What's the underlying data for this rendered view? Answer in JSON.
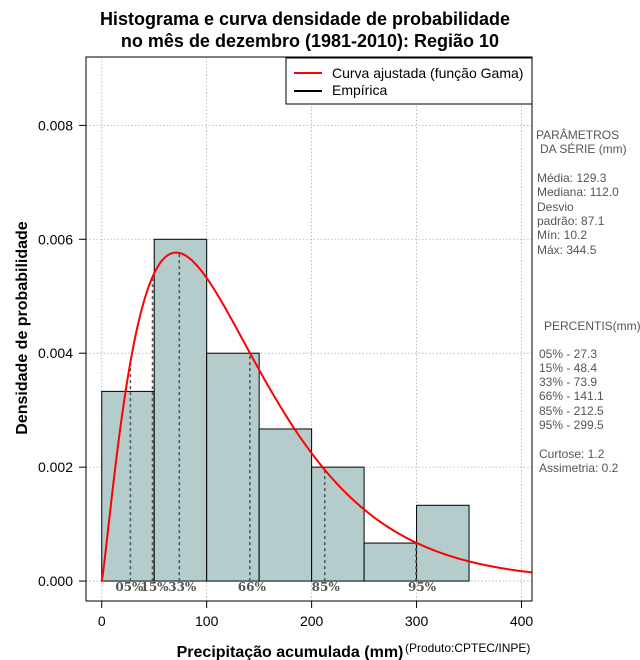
{
  "chart_data": {
    "type": "bar",
    "title_line1": "Histograma e curva densidade de probabilidade",
    "title_line2": "no mês de dezembro (1981-2010): Região 10",
    "xlabel": "Precipitação acumulada (mm)",
    "ylabel": "Densidade de probabilidade",
    "xlim": [
      -15,
      410
    ],
    "ylim": [
      -0.00035,
      0.0092
    ],
    "x_ticks": [
      0,
      100,
      200,
      300,
      400
    ],
    "y_ticks": [
      0.0,
      0.002,
      0.004,
      0.006,
      0.008
    ],
    "x_tick_labels": [
      "0",
      "100",
      "200",
      "300",
      "400"
    ],
    "y_tick_labels": [
      "0.000",
      "0.002",
      "0.004",
      "0.006",
      "0.008"
    ],
    "bins": [
      {
        "start": 0,
        "end": 50,
        "density": 0.00333
      },
      {
        "start": 50,
        "end": 100,
        "density": 0.006
      },
      {
        "start": 100,
        "end": 150,
        "density": 0.004
      },
      {
        "start": 150,
        "end": 200,
        "density": 0.00267
      },
      {
        "start": 200,
        "end": 250,
        "density": 0.002
      },
      {
        "start": 250,
        "end": 300,
        "density": 0.000667
      },
      {
        "start": 300,
        "end": 350,
        "density": 0.00133
      }
    ],
    "gamma_fit": {
      "shape": 2.2,
      "scale": 59,
      "x_max": 410
    },
    "percentile_markers": [
      {
        "label": "05%",
        "value": 27.3
      },
      {
        "label": "15%",
        "value": 48.4
      },
      {
        "label": "33%",
        "value": 73.9
      },
      {
        "label": "66%",
        "value": 141.1
      },
      {
        "label": "85%",
        "value": 212.5
      },
      {
        "label": "95%",
        "value": 299.5
      }
    ],
    "legend": {
      "position": "top-right",
      "entries": [
        {
          "label": "Curva ajustada (função Gama)",
          "color": "#ff0000"
        },
        {
          "label": "Empírica",
          "color": "#000000"
        }
      ]
    },
    "colors": {
      "bar_fill": "#b4cccc",
      "curve": "#ff0000",
      "grid": "#b0b0b0",
      "dotted": "#555555"
    }
  },
  "side_panel": {
    "params_title_1": "PARÂMETROS",
    "params_title_2": "DA SÉRIE (mm)",
    "media": "Média:  129.3",
    "mediana": "Mediana:  112.0",
    "desvio_1": "Desvio",
    "desvio_2": "padrão:  87.1",
    "min": "Mín:  10.2",
    "max": "Máx:  344.5",
    "pct_title": "PERCENTIS(mm)",
    "p05": "05% -   27.3",
    "p15": "15% -   48.4",
    "p33": "33% -   73.9",
    "p66": "66% -  141.1",
    "p85": "85% -  212.5",
    "p95": "95% -  299.5",
    "curtose": "Curtose:  1.2",
    "assimetria": "Assimetria:  0.2"
  },
  "credit": "(Produto:CPTEC/INPE)"
}
